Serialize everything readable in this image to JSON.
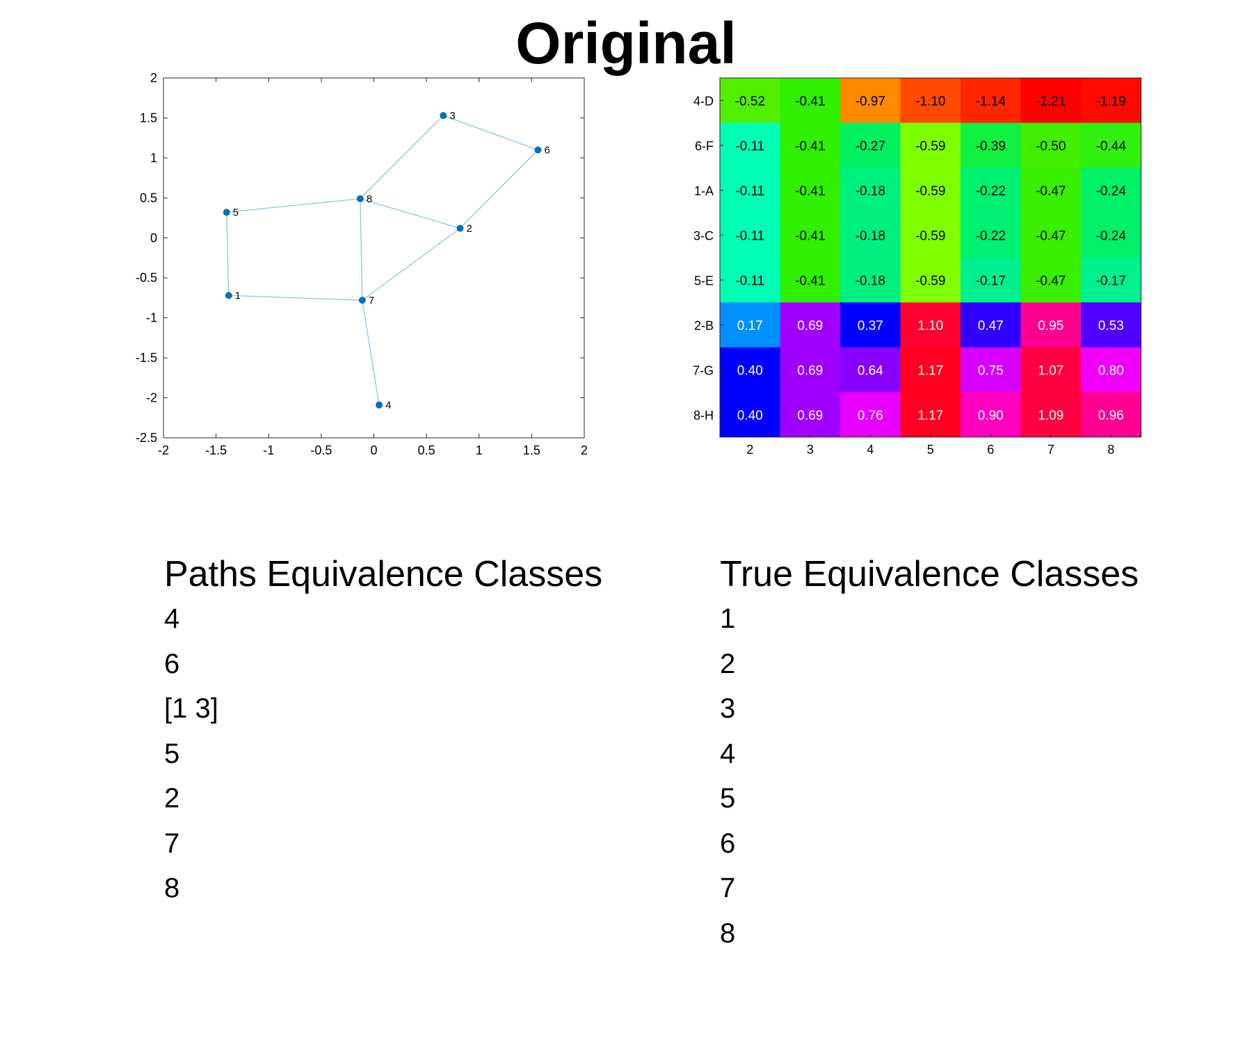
{
  "title": "Original",
  "chart_data": [
    {
      "type": "scatter",
      "title": "",
      "xlabel": "",
      "ylabel": "",
      "xlim": [
        -2,
        2
      ],
      "ylim": [
        -2.5,
        2
      ],
      "xticks": [
        "-2",
        "-1.5",
        "-1",
        "-0.5",
        "0",
        "0.5",
        "1",
        "1.5",
        "2"
      ],
      "yticks": [
        "2",
        "1.5",
        "1",
        "0.5",
        "0",
        "-0.5",
        "-1",
        "-1.5",
        "-2",
        "-2.5"
      ],
      "grid": false,
      "point_color": "#0072BD",
      "edge_color": "#8FC3E6",
      "nodes": [
        {
          "label": "1",
          "x": -1.38,
          "y": -0.72
        },
        {
          "label": "2",
          "x": 0.82,
          "y": 0.12
        },
        {
          "label": "3",
          "x": 0.66,
          "y": 1.53
        },
        {
          "label": "4",
          "x": 0.05,
          "y": -2.09
        },
        {
          "label": "5",
          "x": -1.4,
          "y": 0.32
        },
        {
          "label": "6",
          "x": 1.56,
          "y": 1.1
        },
        {
          "label": "7",
          "x": -0.11,
          "y": -0.78
        },
        {
          "label": "8",
          "x": -0.13,
          "y": 0.49
        }
      ],
      "edges": [
        [
          "5",
          "8"
        ],
        [
          "5",
          "1"
        ],
        [
          "1",
          "7"
        ],
        [
          "7",
          "8"
        ],
        [
          "7",
          "2"
        ],
        [
          "7",
          "4"
        ],
        [
          "8",
          "2"
        ],
        [
          "8",
          "3"
        ],
        [
          "3",
          "6"
        ],
        [
          "6",
          "2"
        ]
      ]
    },
    {
      "type": "heatmap",
      "title": "",
      "columns": [
        "2",
        "3",
        "4",
        "5",
        "6",
        "7",
        "8"
      ],
      "rows": [
        {
          "label": "4-D",
          "values": [
            "-0.52",
            "-0.41",
            "-0.97",
            "-1.10",
            "-1.14",
            "-1.21",
            "-1.19"
          ],
          "colors": [
            "#52F000",
            "#2EF000",
            "#FF8A00",
            "#FF4A00",
            "#FF2600",
            "#FF0000",
            "#FF0A00"
          ]
        },
        {
          "label": "6-F",
          "values": [
            "-0.11",
            "-0.41",
            "-0.27",
            "-0.59",
            "-0.39",
            "-0.50",
            "-0.44"
          ],
          "colors": [
            "#00FFB4",
            "#2EF000",
            "#00F060",
            "#80FF00",
            "#10F040",
            "#40F000",
            "#30F010"
          ]
        },
        {
          "label": "1-A",
          "values": [
            "-0.11",
            "-0.41",
            "-0.18",
            "-0.59",
            "-0.22",
            "-0.47",
            "-0.24"
          ],
          "colors": [
            "#00FFB4",
            "#2EF000",
            "#00F080",
            "#80FF00",
            "#00F070",
            "#38F000",
            "#00F068"
          ]
        },
        {
          "label": "3-C",
          "values": [
            "-0.11",
            "-0.41",
            "-0.18",
            "-0.59",
            "-0.22",
            "-0.47",
            "-0.24"
          ],
          "colors": [
            "#00FFB4",
            "#2EF000",
            "#00F080",
            "#80FF00",
            "#00F070",
            "#38F000",
            "#00F068"
          ]
        },
        {
          "label": "5-E",
          "values": [
            "-0.11",
            "-0.41",
            "-0.18",
            "-0.59",
            "-0.17",
            "-0.47",
            "-0.17"
          ],
          "colors": [
            "#00FFB4",
            "#2EF000",
            "#00F080",
            "#80FF00",
            "#00F090",
            "#38F000",
            "#00F090"
          ]
        },
        {
          "label": "2-B",
          "values": [
            "0.17",
            "0.69",
            "0.37",
            "1.10",
            "0.47",
            "0.95",
            "0.53"
          ],
          "colors": [
            "#0090FF",
            "#A000FF",
            "#0000FF",
            "#FF0030",
            "#3000FF",
            "#FF0090",
            "#5000FF"
          ]
        },
        {
          "label": "7-G",
          "values": [
            "0.40",
            "0.69",
            "0.64",
            "1.17",
            "0.75",
            "1.07",
            "0.80"
          ],
          "colors": [
            "#0000FF",
            "#A000FF",
            "#8800FF",
            "#FF0020",
            "#D800FF",
            "#FF0040",
            "#F000F8"
          ]
        },
        {
          "label": "8-H",
          "values": [
            "0.40",
            "0.69",
            "0.76",
            "1.17",
            "0.90",
            "1.09",
            "0.96"
          ],
          "colors": [
            "#0000FF",
            "#A000FF",
            "#E800FF",
            "#FF0020",
            "#FF00C0",
            "#FF0040",
            "#FF0090"
          ]
        }
      ],
      "text_color_dark": "#000000",
      "text_color_light": "#FFFFFF"
    }
  ],
  "paths": {
    "heading": "Paths Equivalence Classes",
    "items": [
      "4",
      "6",
      "[1 3]",
      "5",
      "2",
      "7",
      "8"
    ]
  },
  "true": {
    "heading": "True Equivalence Classes",
    "items": [
      "1",
      "2",
      "3",
      "4",
      "5",
      "6",
      "7",
      "8"
    ]
  }
}
